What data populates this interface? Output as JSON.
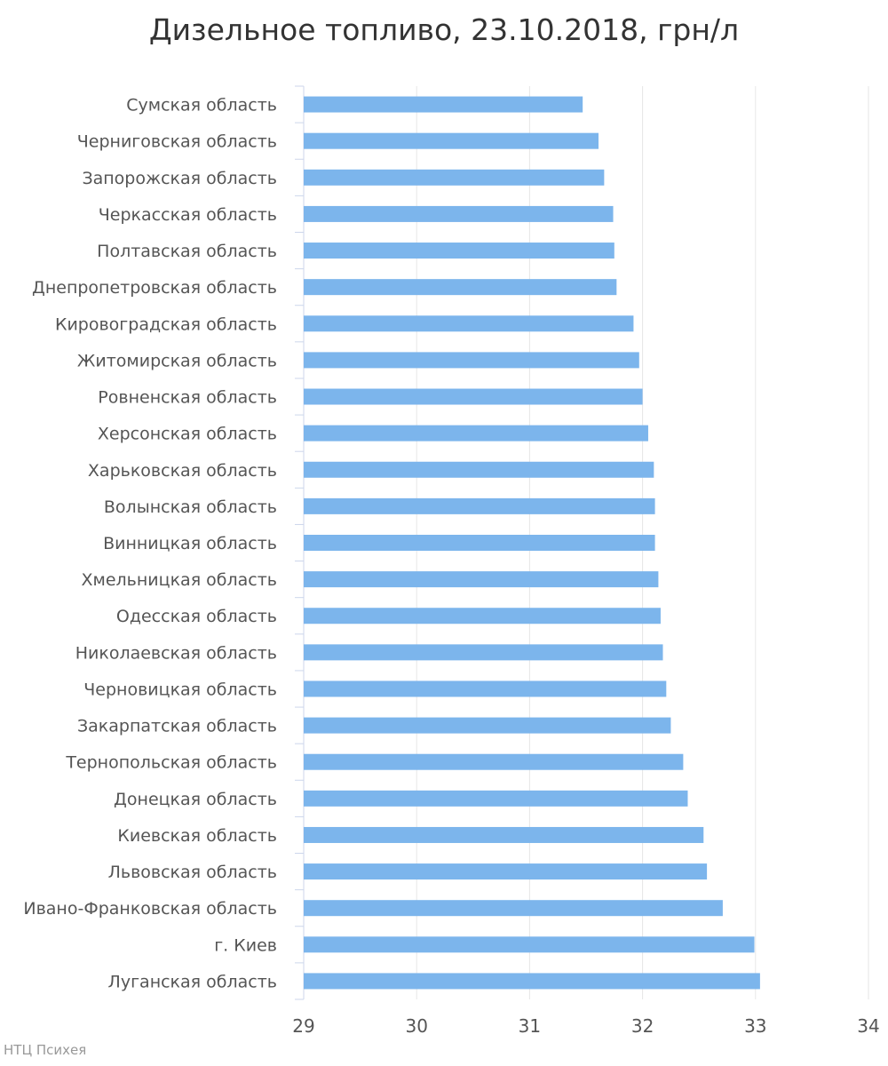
{
  "chart_data": {
    "type": "bar",
    "orientation": "horizontal",
    "title": "Дизельное топливо, 23.10.2018, грн/л",
    "credit": "НТЦ Психея",
    "xlim": [
      29,
      34
    ],
    "xticks": [
      "29",
      "30",
      "31",
      "32",
      "33",
      "34"
    ],
    "grid": true,
    "bar_color": "#7cb5ec",
    "categories": [
      "Сумская область",
      "Черниговская область",
      "Запорожская область",
      "Черкасская область",
      "Полтавская область",
      "Днепропетровская область",
      "Кировоградская область",
      "Житомирская область",
      "Ровненская область",
      "Херсонская область",
      "Харьковская область",
      "Волынская область",
      "Винницкая область",
      "Хмельницкая область",
      "Одесская область",
      "Николаевская область",
      "Черновицкая область",
      "Закарпатская область",
      "Тернопольская область",
      "Донецкая область",
      "Киевская область",
      "Львовская область",
      "Ивано-Франковская область",
      "г. Киев",
      "Луганская область"
    ],
    "values": [
      31.47,
      31.61,
      31.66,
      31.74,
      31.75,
      31.77,
      31.92,
      31.97,
      32.0,
      32.05,
      32.1,
      32.11,
      32.11,
      32.14,
      32.16,
      32.18,
      32.21,
      32.25,
      32.36,
      32.4,
      32.54,
      32.57,
      32.71,
      32.99,
      33.04
    ]
  }
}
